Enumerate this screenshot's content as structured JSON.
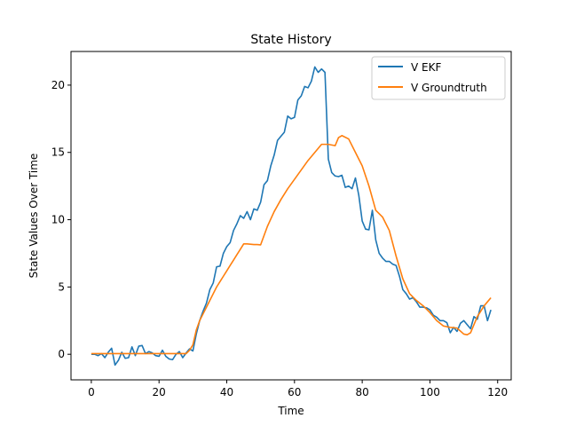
{
  "chart_data": {
    "type": "line",
    "title": "State History",
    "xlabel": "Time",
    "ylabel": "State Values Over Time",
    "xlim": [
      -6,
      124
    ],
    "ylim": [
      -1.9,
      22.5
    ],
    "xticks": [
      0,
      20,
      40,
      60,
      80,
      100,
      120
    ],
    "yticks": [
      0,
      5,
      10,
      15,
      20
    ],
    "grid": false,
    "legend_position": "top-right",
    "series": [
      {
        "name": "V EKF",
        "color": "#1f77b4",
        "x": [
          0,
          1,
          2,
          3,
          4,
          5,
          6,
          7,
          8,
          9,
          10,
          11,
          12,
          13,
          14,
          15,
          16,
          17,
          18,
          19,
          20,
          21,
          22,
          23,
          24,
          25,
          26,
          27,
          28,
          29,
          30,
          31,
          32,
          33,
          34,
          35,
          36,
          37,
          38,
          39,
          40,
          41,
          42,
          43,
          44,
          45,
          46,
          47,
          48,
          49,
          50,
          51,
          52,
          53,
          54,
          55,
          56,
          57,
          58,
          59,
          60,
          61,
          62,
          63,
          64,
          65,
          66,
          67,
          68,
          69,
          70,
          71,
          72,
          73,
          74,
          75,
          76,
          77,
          78,
          79,
          80,
          81,
          82,
          83,
          84,
          85,
          86,
          87,
          88,
          89,
          90,
          91,
          92,
          93,
          94,
          95,
          96,
          97,
          98,
          99,
          100,
          101,
          102,
          103,
          104,
          105,
          106,
          107,
          108,
          109,
          110,
          111,
          112,
          113,
          114,
          115,
          116,
          117,
          118
        ],
        "values": [
          0.0,
          0.0,
          -0.1,
          0.05,
          -0.25,
          0.15,
          0.45,
          -0.8,
          -0.45,
          0.15,
          -0.3,
          -0.25,
          0.55,
          -0.1,
          0.6,
          0.65,
          0.05,
          0.2,
          0.1,
          -0.1,
          -0.15,
          0.3,
          -0.15,
          -0.35,
          -0.4,
          0.0,
          0.2,
          -0.25,
          0.1,
          0.4,
          0.25,
          1.5,
          2.5,
          3.2,
          3.8,
          4.8,
          5.3,
          6.5,
          6.55,
          7.5,
          8.0,
          8.3,
          9.2,
          9.7,
          10.3,
          10.1,
          10.6,
          10.0,
          10.8,
          10.7,
          11.3,
          12.6,
          12.9,
          14.0,
          14.8,
          15.9,
          16.2,
          16.5,
          17.7,
          17.5,
          17.6,
          18.9,
          19.2,
          19.9,
          19.8,
          20.3,
          21.35,
          20.95,
          21.2,
          20.95,
          14.5,
          13.5,
          13.25,
          13.2,
          13.3,
          12.4,
          12.5,
          12.3,
          13.1,
          11.8,
          9.9,
          9.3,
          9.25,
          10.7,
          8.5,
          7.5,
          7.15,
          6.9,
          6.9,
          6.7,
          6.6,
          5.8,
          4.8,
          4.5,
          4.1,
          4.2,
          3.9,
          3.5,
          3.5,
          3.45,
          3.3,
          2.9,
          2.75,
          2.5,
          2.5,
          2.35,
          1.6,
          2.0,
          1.7,
          2.3,
          2.5,
          2.2,
          1.9,
          2.8,
          2.6,
          3.6,
          3.6,
          2.5,
          3.3
        ]
      },
      {
        "name": "V Groundtruth",
        "color": "#ff7f0e",
        "x": [
          0,
          5,
          10,
          15,
          20,
          25,
          28,
          29,
          30,
          31,
          32,
          33,
          34,
          35,
          36,
          37,
          38,
          39,
          40,
          41,
          42,
          43,
          44,
          45,
          46,
          47,
          48,
          49,
          50,
          52,
          54,
          56,
          58,
          60,
          62,
          64,
          66,
          68,
          70,
          71,
          72,
          73,
          74,
          76,
          78,
          80,
          82,
          84,
          86,
          88,
          90,
          92,
          94,
          96,
          98,
          100,
          102,
          104,
          106,
          108,
          110,
          111,
          112,
          113,
          114,
          115,
          116,
          117,
          118
        ],
        "values": [
          0.05,
          0.05,
          0.05,
          0.05,
          0.05,
          0.05,
          0.05,
          0.3,
          0.7,
          1.8,
          2.5,
          3.0,
          3.5,
          4.0,
          4.5,
          5.0,
          5.4,
          5.8,
          6.2,
          6.6,
          7.0,
          7.4,
          7.8,
          8.2,
          8.2,
          8.18,
          8.15,
          8.15,
          8.13,
          9.5,
          10.6,
          11.5,
          12.3,
          13.0,
          13.7,
          14.4,
          15.0,
          15.6,
          15.6,
          15.55,
          15.5,
          16.1,
          16.25,
          16.0,
          15.0,
          14.0,
          12.5,
          10.7,
          10.2,
          9.2,
          7.3,
          5.6,
          4.5,
          4.0,
          3.6,
          3.1,
          2.5,
          2.1,
          2.0,
          1.95,
          1.5,
          1.45,
          1.6,
          2.2,
          2.8,
          3.2,
          3.6,
          3.9,
          4.2
        ]
      }
    ]
  }
}
